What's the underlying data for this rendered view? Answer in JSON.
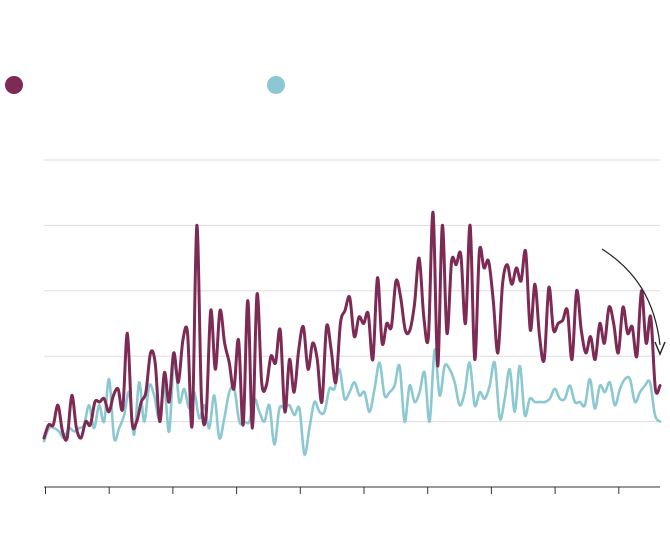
{
  "chart_data": {
    "type": "line",
    "title": "",
    "xlabel": "",
    "ylabel": "",
    "grid": true,
    "legend": "top-left",
    "xlim": [
      0,
      193
    ],
    "ylim": [
      0,
      5
    ],
    "x_tick_count": 10,
    "series": [
      {
        "name": "",
        "color": "#7d2a55",
        "values": [
          0.75,
          0.95,
          0.95,
          1.25,
          0.85,
          0.75,
          1.4,
          0.9,
          0.75,
          1.0,
          0.95,
          1.3,
          1.3,
          1.35,
          1.15,
          1.4,
          1.5,
          1.2,
          2.35,
          1.0,
          1.0,
          1.3,
          1.45,
          2.05,
          1.9,
          1.0,
          1.75,
          1.3,
          2.05,
          1.6,
          2.25,
          2.35,
          0.95,
          4.0,
          1.35,
          1.1,
          2.7,
          1.8,
          2.7,
          2.2,
          1.9,
          1.5,
          2.25,
          0.95,
          2.85,
          0.9,
          2.95,
          1.6,
          1.55,
          2.0,
          1.9,
          2.4,
          1.15,
          1.95,
          1.45,
          2.1,
          2.45,
          1.8,
          2.2,
          1.95,
          1.3,
          2.45,
          2.1,
          1.6,
          2.5,
          2.7,
          2.9,
          2.3,
          2.6,
          2.5,
          2.65,
          1.95,
          3.2,
          2.2,
          2.5,
          2.45,
          3.15,
          2.9,
          2.4,
          2.4,
          2.8,
          3.5,
          2.6,
          2.3,
          4.2,
          1.85,
          4.0,
          2.35,
          3.45,
          3.4,
          3.55,
          2.5,
          4.0,
          1.95,
          3.6,
          3.35,
          3.45,
          2.85,
          2.05,
          3.1,
          3.4,
          3.1,
          3.35,
          3.15,
          3.6,
          2.4,
          3.1,
          2.3,
          1.95,
          3.05,
          2.4,
          2.5,
          2.55,
          2.7,
          1.95,
          3.0,
          2.4,
          2.05,
          2.3,
          1.95,
          2.5,
          2.2,
          2.75,
          2.5,
          2.05,
          2.75,
          2.35,
          2.45,
          2.0,
          3.0,
          2.2,
          2.6,
          1.5,
          1.55
        ]
      },
      {
        "name": "",
        "color": "#8cc8d2",
        "values": [
          0.7,
          0.9,
          0.9,
          0.85,
          0.75,
          0.9,
          0.85,
          0.9,
          0.95,
          1.25,
          0.9,
          1.25,
          1.0,
          1.65,
          0.75,
          0.9,
          1.1,
          1.45,
          0.8,
          1.6,
          1.0,
          1.55,
          1.4,
          1.05,
          1.55,
          0.85,
          2.0,
          1.3,
          1.5,
          1.2,
          1.45,
          1.05,
          1.25,
          0.9,
          1.4,
          0.75,
          1.05,
          1.45,
          1.5,
          1.0,
          1.0,
          1.0,
          1.35,
          1.15,
          1.0,
          1.25,
          0.65,
          1.2,
          1.2,
          1.25,
          1.1,
          1.2,
          0.5,
          0.9,
          1.3,
          1.15,
          1.15,
          1.5,
          1.5,
          1.8,
          1.35,
          1.45,
          1.6,
          1.4,
          1.45,
          1.15,
          1.5,
          1.9,
          1.4,
          1.45,
          1.55,
          1.85,
          1.0,
          1.55,
          1.3,
          1.45,
          1.75,
          1.0,
          2.1,
          1.4,
          1.85,
          1.8,
          1.6,
          1.25,
          1.45,
          1.9,
          1.25,
          1.45,
          1.35,
          1.55,
          1.9,
          1.05,
          1.35,
          1.8,
          1.15,
          1.85,
          1.1,
          1.35,
          1.3,
          1.3,
          1.3,
          1.35,
          1.5,
          1.35,
          1.35,
          1.55,
          1.3,
          1.3,
          1.25,
          1.65,
          1.2,
          1.55,
          1.45,
          1.6,
          1.25,
          1.5,
          1.65,
          1.65,
          1.3,
          1.45,
          1.55,
          1.6,
          1.1,
          1.0
        ]
      }
    ]
  }
}
